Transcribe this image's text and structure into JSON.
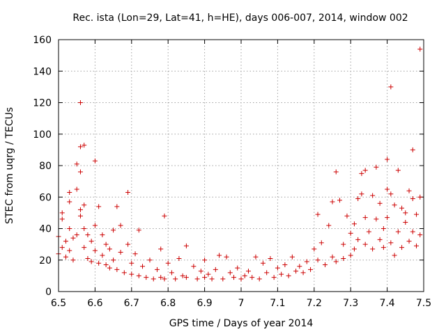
{
  "chart_data": {
    "type": "scatter",
    "title": "Rec. ista (Lon=29, Lat=41, h=HE), days 006-007, 2014, window 002",
    "xlabel": "GPS time / Days of year 2014",
    "ylabel": "STEC from uqrg / TECUs",
    "xlim": [
      6.5,
      7.5
    ],
    "ylim": [
      0,
      160
    ],
    "xticks": [
      6.5,
      6.6,
      6.7,
      6.8,
      6.9,
      7,
      7.1,
      7.2,
      7.3,
      7.4,
      7.5
    ],
    "xtick_labels": [
      "6.5",
      "6.6",
      "6.7",
      "6.8",
      "6.9",
      "7",
      "7.1",
      "7.2",
      "7.3",
      "7.4",
      "7.5"
    ],
    "yticks": [
      0,
      20,
      40,
      60,
      80,
      100,
      120,
      140,
      160
    ],
    "ytick_labels": [
      "0",
      "20",
      "40",
      "60",
      "80",
      "100",
      "120",
      "140",
      "160"
    ],
    "grid": true,
    "legend": "none",
    "marker": "plus",
    "color": "#cc0000",
    "series": [
      {
        "points": [
          [
            6.5,
            24
          ],
          [
            6.5,
            35
          ],
          [
            6.51,
            46
          ],
          [
            6.51,
            50
          ],
          [
            6.51,
            28
          ],
          [
            6.52,
            22
          ],
          [
            6.52,
            32
          ],
          [
            6.53,
            57
          ],
          [
            6.53,
            63
          ],
          [
            6.53,
            40
          ],
          [
            6.53,
            26
          ],
          [
            6.54,
            20
          ],
          [
            6.54,
            34
          ],
          [
            6.55,
            81
          ],
          [
            6.55,
            65
          ],
          [
            6.55,
            36
          ],
          [
            6.56,
            120
          ],
          [
            6.56,
            92
          ],
          [
            6.56,
            76
          ],
          [
            6.56,
            48
          ],
          [
            6.56,
            52
          ],
          [
            6.57,
            93
          ],
          [
            6.57,
            55
          ],
          [
            6.57,
            40
          ],
          [
            6.57,
            28
          ],
          [
            6.58,
            21
          ],
          [
            6.58,
            36
          ],
          [
            6.59,
            19
          ],
          [
            6.59,
            32
          ],
          [
            6.6,
            83
          ],
          [
            6.6,
            42
          ],
          [
            6.6,
            26
          ],
          [
            6.61,
            54
          ],
          [
            6.61,
            18
          ],
          [
            6.62,
            36
          ],
          [
            6.62,
            23
          ],
          [
            6.63,
            30
          ],
          [
            6.63,
            17
          ],
          [
            6.64,
            27
          ],
          [
            6.64,
            15
          ],
          [
            6.65,
            39
          ],
          [
            6.65,
            20
          ],
          [
            6.66,
            54
          ],
          [
            6.66,
            14
          ],
          [
            6.67,
            42
          ],
          [
            6.67,
            25
          ],
          [
            6.68,
            12
          ],
          [
            6.69,
            63
          ],
          [
            6.69,
            30
          ],
          [
            6.7,
            18
          ],
          [
            6.7,
            11
          ],
          [
            6.71,
            24
          ],
          [
            6.72,
            39
          ],
          [
            6.72,
            10
          ],
          [
            6.73,
            16
          ],
          [
            6.74,
            9
          ],
          [
            6.75,
            20
          ],
          [
            6.76,
            8
          ],
          [
            6.77,
            14
          ],
          [
            6.78,
            27
          ],
          [
            6.78,
            9
          ],
          [
            6.79,
            48
          ],
          [
            6.79,
            8
          ],
          [
            6.8,
            18
          ],
          [
            6.81,
            12
          ],
          [
            6.82,
            8
          ],
          [
            6.83,
            21
          ],
          [
            6.84,
            10
          ],
          [
            6.85,
            29
          ],
          [
            6.85,
            9
          ],
          [
            6.87,
            16
          ],
          [
            6.88,
            8
          ],
          [
            6.89,
            13
          ],
          [
            6.9,
            20
          ],
          [
            6.9,
            9
          ],
          [
            6.91,
            11
          ],
          [
            6.92,
            8
          ],
          [
            6.93,
            14
          ],
          [
            6.94,
            23
          ],
          [
            6.95,
            8
          ],
          [
            6.96,
            22
          ],
          [
            6.97,
            12
          ],
          [
            6.98,
            9
          ],
          [
            6.99,
            15
          ],
          [
            7.0,
            8
          ],
          [
            7.01,
            10
          ],
          [
            7.02,
            13
          ],
          [
            7.03,
            9
          ],
          [
            7.04,
            22
          ],
          [
            7.05,
            8
          ],
          [
            7.06,
            18
          ],
          [
            7.07,
            12
          ],
          [
            7.08,
            21
          ],
          [
            7.09,
            9
          ],
          [
            7.1,
            15
          ],
          [
            7.11,
            11
          ],
          [
            7.12,
            17
          ],
          [
            7.13,
            10
          ],
          [
            7.14,
            22
          ],
          [
            7.15,
            13
          ],
          [
            7.16,
            16
          ],
          [
            7.17,
            12
          ],
          [
            7.18,
            19
          ],
          [
            7.19,
            14
          ],
          [
            7.2,
            27
          ],
          [
            7.21,
            49
          ],
          [
            7.21,
            20
          ],
          [
            7.22,
            31
          ],
          [
            7.23,
            17
          ],
          [
            7.24,
            42
          ],
          [
            7.25,
            57
          ],
          [
            7.25,
            22
          ],
          [
            7.26,
            76
          ],
          [
            7.26,
            19
          ],
          [
            7.27,
            58
          ],
          [
            7.28,
            30
          ],
          [
            7.28,
            21
          ],
          [
            7.29,
            48
          ],
          [
            7.3,
            37
          ],
          [
            7.3,
            23
          ],
          [
            7.31,
            43
          ],
          [
            7.31,
            27
          ],
          [
            7.32,
            59
          ],
          [
            7.32,
            33
          ],
          [
            7.33,
            62
          ],
          [
            7.33,
            75
          ],
          [
            7.34,
            77
          ],
          [
            7.34,
            47
          ],
          [
            7.34,
            30
          ],
          [
            7.35,
            38
          ],
          [
            7.36,
            61
          ],
          [
            7.36,
            27
          ],
          [
            7.37,
            46
          ],
          [
            7.37,
            79
          ],
          [
            7.38,
            33
          ],
          [
            7.38,
            56
          ],
          [
            7.39,
            40
          ],
          [
            7.39,
            28
          ],
          [
            7.4,
            65
          ],
          [
            7.4,
            84
          ],
          [
            7.4,
            47
          ],
          [
            7.41,
            62
          ],
          [
            7.41,
            31
          ],
          [
            7.41,
            130
          ],
          [
            7.42,
            55
          ],
          [
            7.42,
            23
          ],
          [
            7.43,
            77
          ],
          [
            7.43,
            38
          ],
          [
            7.44,
            53
          ],
          [
            7.44,
            28
          ],
          [
            7.45,
            44
          ],
          [
            7.45,
            50
          ],
          [
            7.46,
            64
          ],
          [
            7.46,
            32
          ],
          [
            7.47,
            90
          ],
          [
            7.47,
            59
          ],
          [
            7.47,
            38
          ],
          [
            7.48,
            49
          ],
          [
            7.48,
            29
          ],
          [
            7.49,
            154
          ],
          [
            7.49,
            60
          ],
          [
            7.49,
            36
          ]
        ]
      }
    ]
  }
}
